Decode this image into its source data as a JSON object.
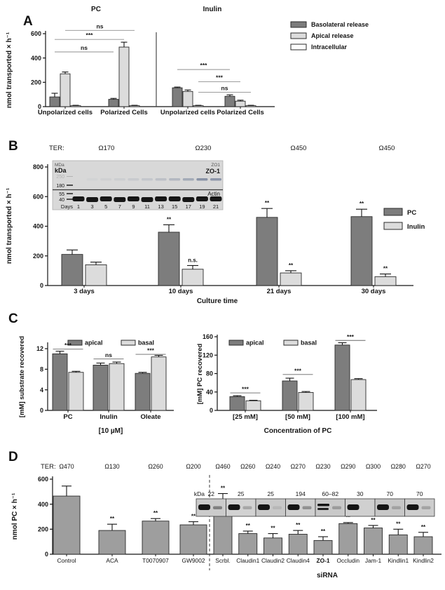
{
  "figure": {
    "panels": [
      {
        "letter": "A"
      },
      {
        "letter": "B"
      },
      {
        "letter": "C"
      },
      {
        "letter": "D"
      }
    ]
  },
  "chart_data": [
    {
      "id": "A",
      "type": "bar",
      "section_titles": [
        "PC",
        "Inulin"
      ],
      "ylabel": "nmol transported × h⁻¹",
      "ylim": [
        0,
        600
      ],
      "yticks": [
        0,
        200,
        400,
        600
      ],
      "categories": [
        "Unpolarized cells",
        "Polarized Cells",
        "Unpolarized cells",
        "Polarized Cells"
      ],
      "series": [
        {
          "name": "Basolateral release",
          "color": "#7d7d7d",
          "values": [
            80,
            60,
            155,
            85
          ],
          "errors": [
            30,
            8,
            6,
            12
          ]
        },
        {
          "name": "Apical release",
          "color": "#dcdcdc",
          "values": [
            270,
            490,
            125,
            45
          ],
          "errors": [
            15,
            40,
            12,
            8
          ]
        },
        {
          "name": "Intracellular",
          "color": "#fbfbfb",
          "values": [
            8,
            8,
            8,
            8
          ],
          "errors": [
            3,
            3,
            3,
            3
          ]
        }
      ],
      "annotations": [
        {
          "b1": 0,
          "b2": 3,
          "y": 450,
          "label": "ns"
        },
        {
          "b1": 0,
          "b2": 4,
          "y": 553,
          "label": "***"
        },
        {
          "b1": 1,
          "b2": 5,
          "y": 627,
          "label": "ns"
        },
        {
          "b1": 6,
          "b2": 9,
          "y": 305,
          "label": "***"
        },
        {
          "b1": 8,
          "b2": 10,
          "y": 205,
          "label": "***"
        },
        {
          "b1": 8,
          "b2": 11,
          "y": 118,
          "label": "ns"
        }
      ],
      "legend_position": "top-right",
      "grid": false
    },
    {
      "id": "B",
      "type": "bar",
      "ter": {
        "label": "TER:",
        "values": [
          "Ω170",
          "Ω230",
          "Ω450",
          "Ω450"
        ]
      },
      "ylabel": "nmol transported × h⁻¹",
      "xlabel": "Culture time",
      "ylim": [
        0,
        800
      ],
      "yticks": [
        0,
        200,
        400,
        600,
        800
      ],
      "categories": [
        "3 days",
        "10 days",
        "21 days",
        "30 days"
      ],
      "series": [
        {
          "name": "PC",
          "color": "#7d7d7d",
          "values": [
            210,
            360,
            460,
            465
          ],
          "errors": [
            30,
            50,
            60,
            50
          ],
          "sig": [
            "",
            "**",
            "**",
            "**"
          ]
        },
        {
          "name": "Inulin",
          "color": "#dcdcdc",
          "values": [
            140,
            110,
            85,
            60
          ],
          "errors": [
            18,
            25,
            15,
            18
          ],
          "sig": [
            "",
            "n.s.",
            "**",
            "**"
          ]
        }
      ],
      "inset": {
        "top_left_small": "MDa",
        "top_left_bold": "kDa",
        "top_right_small": "ZO1",
        "top_right_bold": "ZO-1",
        "faint_marker": "250",
        "marker_upper": "180",
        "markers_lower": [
          "55",
          "40"
        ],
        "actin_label": "Actin",
        "days_label": "Days",
        "days": [
          "1",
          "3",
          "5",
          "7",
          "9",
          "11",
          "13",
          "15",
          "17",
          "19",
          "21"
        ]
      },
      "legend_position": "right",
      "grid": false
    },
    {
      "id": "C1",
      "type": "bar",
      "ylabel": "[mM] substrate recovered",
      "xlabel": "[10 µM]",
      "ylim": [
        0,
        13
      ],
      "yticks": [
        0,
        4,
        8,
        12
      ],
      "categories": [
        "PC",
        "Inulin",
        "Oleate"
      ],
      "series": [
        {
          "name": "apical",
          "color": "#7d7d7d",
          "values": [
            11.0,
            8.8,
            7.2
          ],
          "errors": [
            0.5,
            0.4,
            0.2
          ]
        },
        {
          "name": "basal",
          "color": "#dcdcdc",
          "values": [
            7.4,
            9.1,
            10.4
          ],
          "errors": [
            0.2,
            0.3,
            0.3
          ]
        }
      ],
      "pair_annotations": [
        {
          "group": 0,
          "y": 11.9,
          "label": "***"
        },
        {
          "group": 1,
          "y": 10.0,
          "label": "ns"
        },
        {
          "group": 2,
          "y": 10.9,
          "label": "***"
        }
      ],
      "legend_position": "top",
      "grid": false
    },
    {
      "id": "C2",
      "type": "bar",
      "ylabel": "[mM] PC recovered",
      "xlabel": "Concentration of PC",
      "ylim": [
        0,
        160
      ],
      "yticks": [
        0,
        40,
        80,
        120,
        160
      ],
      "categories": [
        "[25 mM]",
        "[50 mM]",
        "[100 mM]"
      ],
      "series": [
        {
          "name": "apical",
          "color": "#7d7d7d",
          "values": [
            30,
            64,
            142
          ],
          "errors": [
            2,
            6,
            5
          ]
        },
        {
          "name": "basal",
          "color": "#dcdcdc",
          "values": [
            21,
            39,
            67
          ],
          "errors": [
            1,
            2,
            2
          ]
        }
      ],
      "pair_annotations": [
        {
          "group": 0,
          "y": 38,
          "label": "***"
        },
        {
          "group": 1,
          "y": 78,
          "label": "***"
        },
        {
          "group": 2,
          "y": 152,
          "label": "***"
        }
      ],
      "legend_position": "top",
      "grid": false
    },
    {
      "id": "D",
      "type": "bar",
      "ter": {
        "label": "TER:",
        "values": [
          "Ω470",
          "Ω130",
          "Ω260",
          "Ω200",
          "Ω460",
          "Ω260",
          "Ω240",
          "Ω270",
          "Ω230",
          "Ω290",
          "Ω300",
          "Ω280",
          "Ω270"
        ]
      },
      "ylabel": "nmol PC × h⁻¹",
      "xlabel": "siRNA",
      "ylim": [
        0,
        600
      ],
      "yticks": [
        0,
        200,
        400,
        600
      ],
      "categories": [
        "Control",
        "ACA",
        "T0070907",
        "GW9002",
        "Scrbl.",
        "Claudin1",
        "Claudin2",
        "Claudin4",
        "ZO-1",
        "Occludin",
        "Jam-1",
        "Kindlin1",
        "Kindlin2"
      ],
      "bold_categories": [
        "ZO-1"
      ],
      "bar_color": "#9e9e9e",
      "values": [
        465,
        190,
        265,
        235,
        430,
        165,
        130,
        160,
        110,
        245,
        210,
        155,
        140
      ],
      "errors": [
        80,
        50,
        20,
        25,
        55,
        20,
        35,
        30,
        30,
        8,
        20,
        45,
        35
      ],
      "sig": [
        "",
        "**",
        "**",
        "**",
        "**",
        "**",
        "**",
        "**",
        "**",
        "**",
        "**",
        "**",
        "**"
      ],
      "inset": {
        "kda_label": "kDa",
        "kda_values": [
          "22",
          "25",
          "25",
          "194",
          "60–82",
          "30",
          "70",
          "70"
        ]
      },
      "grid": false
    }
  ]
}
